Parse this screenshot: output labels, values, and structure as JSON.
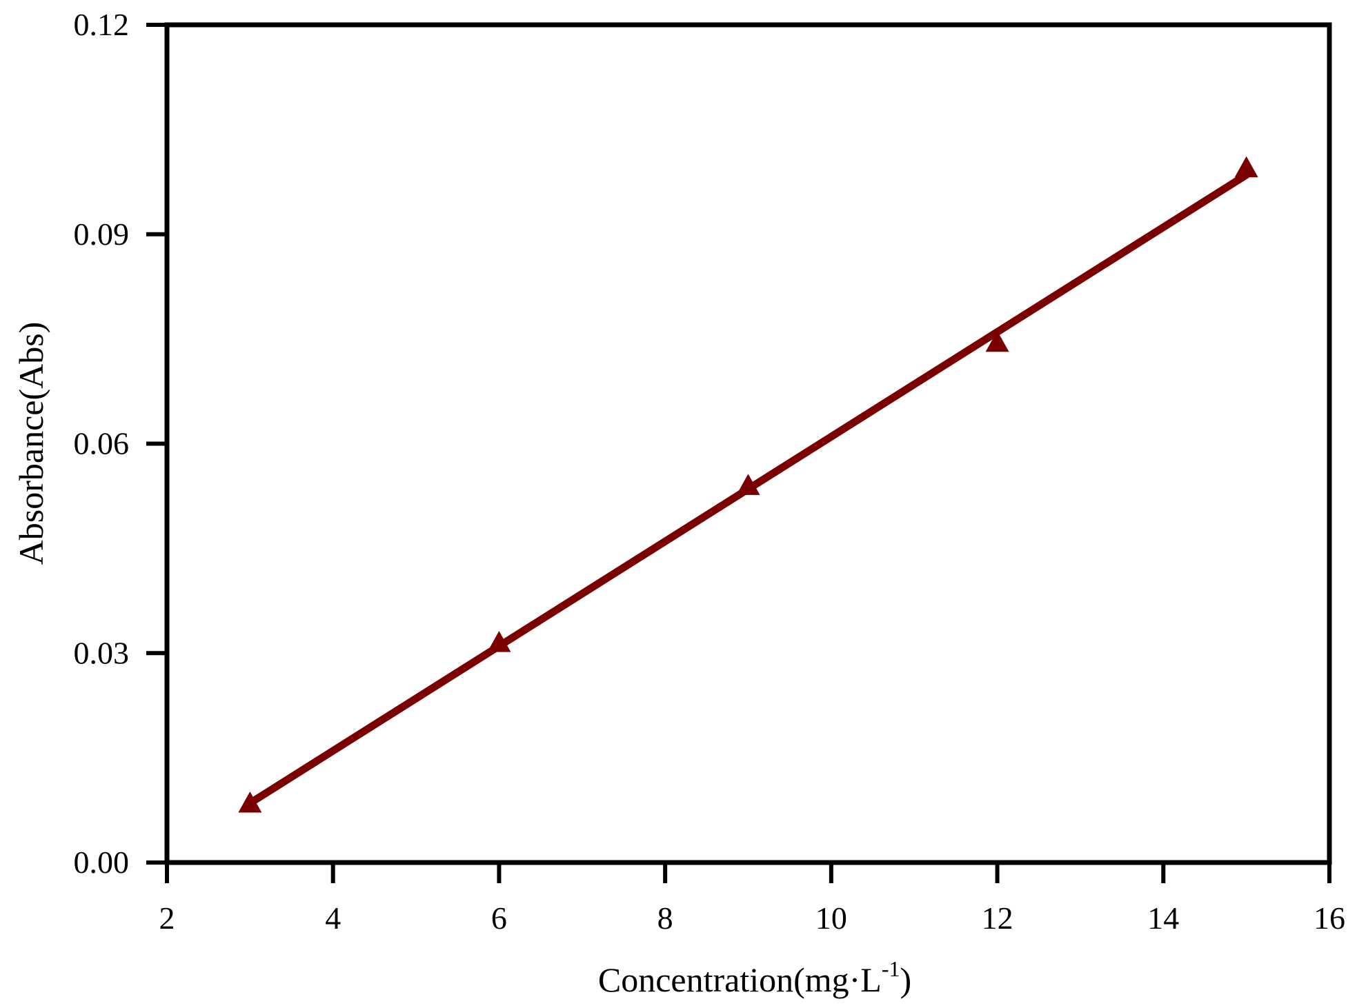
{
  "chart_data": {
    "type": "scatter",
    "title": "",
    "xlabel": "Concentration(mg·L",
    "xlabel_sup": "-1",
    "xlabel_close": ")",
    "ylabel": "Absorbance(Abs)",
    "xlim": [
      2,
      16
    ],
    "ylim": [
      0,
      0.12
    ],
    "x_ticks": [
      2,
      4,
      6,
      8,
      10,
      12,
      14,
      16
    ],
    "y_ticks": [
      0,
      0.03,
      0.06,
      0.09,
      0.12
    ],
    "x_tick_labels": [
      "2",
      "4",
      "6",
      "8",
      "10",
      "12",
      "14",
      "16"
    ],
    "y_tick_labels": [
      "0.00",
      "0.03",
      "0.06",
      "0.09",
      "0.12"
    ],
    "grid": false,
    "series": [
      {
        "marker": "triangle-up",
        "color": "#7b0000",
        "x": [
          3,
          6,
          9,
          12,
          15
        ],
        "y": [
          0.0085,
          0.0315,
          0.054,
          0.0745,
          0.0995
        ]
      }
    ],
    "fit_line": {
      "color": "#7b0000",
      "x": [
        3,
        15
      ],
      "y": [
        0.0085,
        0.0985
      ]
    }
  }
}
